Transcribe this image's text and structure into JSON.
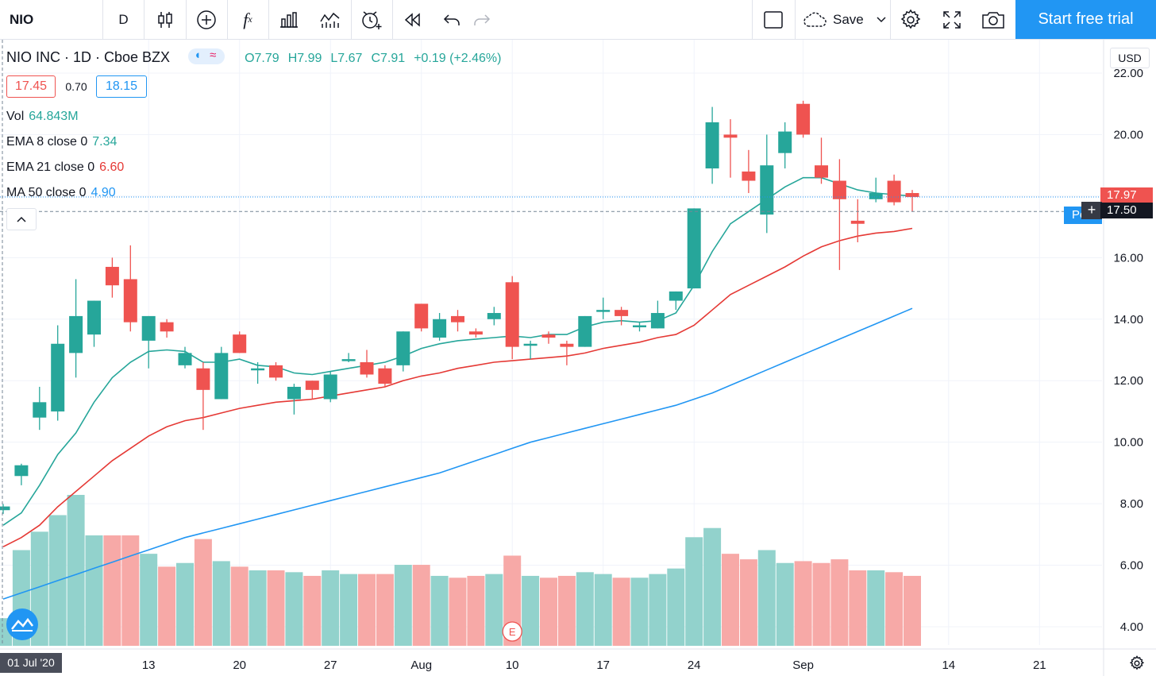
{
  "toolbar": {
    "symbol": "NIO",
    "interval": "D",
    "fx": "f",
    "save_label": "Save",
    "trial_label": "Start free trial"
  },
  "legend": {
    "title": "NIO INC · 1D · Cboe BZX",
    "ohlc": {
      "o": "O7.79",
      "h": "H7.99",
      "l": "L7.67",
      "c": "C7.91",
      "chg": "+0.19 (+2.46%)"
    },
    "bid": "17.45",
    "spread": "0.70",
    "ask": "18.15",
    "vol_label": "Vol",
    "vol_value": "64.843M",
    "ema8_label": "EMA 8 close 0",
    "ema8_value": "7.34",
    "ema21_label": "EMA 21 close 0",
    "ema21_value": "6.60",
    "ma50_label": "MA 50 close 0",
    "ma50_value": "4.90"
  },
  "price_axis": {
    "currency": "USD",
    "last_price": "17.97",
    "crosshair_price": "17.50",
    "po_label": "Po"
  },
  "time_axis": {
    "crosshair_date": "01 Jul '20"
  },
  "earnings_marker": "E",
  "colors": {
    "up": "#26a69a",
    "down": "#ef5350",
    "up_vol": "#92d2cc",
    "down_vol": "#f7a9a7",
    "ema8": "#26a69a",
    "ema21": "#e53935",
    "ma50": "#2196f3",
    "accent": "#2196f3"
  },
  "chart_data": {
    "type": "candlestick",
    "symbol": "NIO",
    "ylim": [
      3.3,
      22.6
    ],
    "yticks": [
      4,
      6,
      8,
      10,
      12,
      14,
      16,
      18,
      20,
      22
    ],
    "xticks": [
      {
        "label": "13",
        "index": 8
      },
      {
        "label": "20",
        "index": 13
      },
      {
        "label": "27",
        "index": 18
      },
      {
        "label": "Aug",
        "index": 23
      },
      {
        "label": "10",
        "index": 28
      },
      {
        "label": "17",
        "index": 33
      },
      {
        "label": "24",
        "index": 38
      },
      {
        "label": "Sep",
        "index": 44
      },
      {
        "label": "14",
        "index": 52
      },
      {
        "label": "21",
        "index": 57
      }
    ],
    "candles": [
      {
        "o": 7.79,
        "h": 7.99,
        "l": 7.67,
        "c": 7.91,
        "v": 1.5
      },
      {
        "o": 8.9,
        "h": 9.3,
        "l": 8.6,
        "c": 9.25,
        "v": 5.2
      },
      {
        "o": 10.8,
        "h": 11.8,
        "l": 10.4,
        "c": 11.3,
        "v": 6.2
      },
      {
        "o": 11.0,
        "h": 13.8,
        "l": 10.7,
        "c": 13.2,
        "v": 7.1
      },
      {
        "o": 12.9,
        "h": 15.3,
        "l": 12.1,
        "c": 14.1,
        "v": 8.2
      },
      {
        "o": 13.5,
        "h": 14.6,
        "l": 13.1,
        "c": 14.6,
        "v": 6.0
      },
      {
        "o": 15.7,
        "h": 16.0,
        "l": 14.7,
        "c": 15.1,
        "v": 6.0
      },
      {
        "o": 15.3,
        "h": 16.4,
        "l": 13.6,
        "c": 13.9,
        "v": 6.0
      },
      {
        "o": 13.3,
        "h": 14.1,
        "l": 12.4,
        "c": 14.1,
        "v": 5.0
      },
      {
        "o": 13.9,
        "h": 14.0,
        "l": 13.4,
        "c": 13.6,
        "v": 4.3
      },
      {
        "o": 12.5,
        "h": 13.1,
        "l": 12.4,
        "c": 12.9,
        "v": 4.5
      },
      {
        "o": 12.4,
        "h": 12.6,
        "l": 10.4,
        "c": 11.7,
        "v": 5.8
      },
      {
        "o": 11.4,
        "h": 13.1,
        "l": 11.4,
        "c": 12.9,
        "v": 4.6
      },
      {
        "o": 13.5,
        "h": 13.6,
        "l": 12.9,
        "c": 12.9,
        "v": 4.3
      },
      {
        "o": 12.4,
        "h": 12.6,
        "l": 11.9,
        "c": 12.4,
        "v": 4.1
      },
      {
        "o": 12.5,
        "h": 12.6,
        "l": 12.0,
        "c": 12.1,
        "v": 4.1
      },
      {
        "o": 11.4,
        "h": 11.9,
        "l": 10.9,
        "c": 11.8,
        "v": 4.0
      },
      {
        "o": 12.0,
        "h": 12.0,
        "l": 11.4,
        "c": 11.7,
        "v": 3.8
      },
      {
        "o": 11.4,
        "h": 12.3,
        "l": 11.3,
        "c": 12.2,
        "v": 4.1
      },
      {
        "o": 12.7,
        "h": 12.9,
        "l": 12.6,
        "c": 12.7,
        "v": 3.9
      },
      {
        "o": 12.6,
        "h": 13.0,
        "l": 12.1,
        "c": 12.2,
        "v": 3.9
      },
      {
        "o": 12.4,
        "h": 12.5,
        "l": 11.8,
        "c": 11.9,
        "v": 3.9
      },
      {
        "o": 12.5,
        "h": 13.6,
        "l": 12.3,
        "c": 13.6,
        "v": 4.4
      },
      {
        "o": 14.5,
        "h": 14.5,
        "l": 13.6,
        "c": 13.7,
        "v": 4.4
      },
      {
        "o": 13.4,
        "h": 14.2,
        "l": 13.3,
        "c": 14.0,
        "v": 3.8
      },
      {
        "o": 14.1,
        "h": 14.3,
        "l": 13.6,
        "c": 13.9,
        "v": 3.7
      },
      {
        "o": 13.6,
        "h": 13.7,
        "l": 13.4,
        "c": 13.5,
        "v": 3.8
      },
      {
        "o": 14.0,
        "h": 14.4,
        "l": 13.8,
        "c": 14.2,
        "v": 3.9
      },
      {
        "o": 15.2,
        "h": 15.4,
        "l": 12.7,
        "c": 13.1,
        "v": 4.9
      },
      {
        "o": 13.2,
        "h": 13.3,
        "l": 12.7,
        "c": 13.2,
        "v": 3.8
      },
      {
        "o": 13.5,
        "h": 13.6,
        "l": 13.2,
        "c": 13.4,
        "v": 3.7
      },
      {
        "o": 13.2,
        "h": 13.3,
        "l": 12.5,
        "c": 13.1,
        "v": 3.8
      },
      {
        "o": 13.1,
        "h": 14.1,
        "l": 13.1,
        "c": 14.1,
        "v": 4.0
      },
      {
        "o": 14.3,
        "h": 14.7,
        "l": 14.0,
        "c": 14.3,
        "v": 3.9
      },
      {
        "o": 14.3,
        "h": 14.4,
        "l": 13.8,
        "c": 14.1,
        "v": 3.7
      },
      {
        "o": 13.8,
        "h": 13.9,
        "l": 13.6,
        "c": 13.8,
        "v": 3.7
      },
      {
        "o": 13.7,
        "h": 14.6,
        "l": 13.7,
        "c": 14.2,
        "v": 3.9
      },
      {
        "o": 14.6,
        "h": 14.9,
        "l": 14.3,
        "c": 14.9,
        "v": 4.2
      },
      {
        "o": 15.0,
        "h": 17.6,
        "l": 15.0,
        "c": 17.6,
        "v": 5.9
      },
      {
        "o": 18.9,
        "h": 20.9,
        "l": 18.4,
        "c": 20.4,
        "v": 6.4
      },
      {
        "o": 20.0,
        "h": 20.5,
        "l": 18.6,
        "c": 19.9,
        "v": 5.0
      },
      {
        "o": 18.8,
        "h": 19.5,
        "l": 18.1,
        "c": 18.5,
        "v": 4.7
      },
      {
        "o": 17.4,
        "h": 20.0,
        "l": 16.8,
        "c": 19.0,
        "v": 5.2
      },
      {
        "o": 19.4,
        "h": 20.4,
        "l": 18.9,
        "c": 20.1,
        "v": 4.5
      },
      {
        "o": 21.0,
        "h": 21.1,
        "l": 19.9,
        "c": 20.0,
        "v": 4.6
      },
      {
        "o": 19.0,
        "h": 19.9,
        "l": 18.4,
        "c": 18.6,
        "v": 4.5
      },
      {
        "o": 18.5,
        "h": 19.2,
        "l": 15.6,
        "c": 17.9,
        "v": 4.7
      },
      {
        "o": 17.2,
        "h": 17.9,
        "l": 16.5,
        "c": 17.1,
        "v": 4.1
      },
      {
        "o": 17.9,
        "h": 18.6,
        "l": 17.8,
        "c": 18.1,
        "v": 4.1
      },
      {
        "o": 18.5,
        "h": 18.7,
        "l": 17.7,
        "c": 17.8,
        "v": 4.0
      },
      {
        "o": 18.1,
        "h": 18.2,
        "l": 17.5,
        "c": 17.97,
        "v": 3.8
      }
    ],
    "ema8": [
      7.3,
      7.7,
      8.6,
      9.6,
      10.3,
      11.3,
      12.1,
      12.6,
      12.95,
      13.0,
      12.95,
      12.6,
      12.6,
      12.7,
      12.5,
      12.45,
      12.25,
      12.2,
      12.3,
      12.4,
      12.5,
      12.6,
      12.8,
      13.05,
      13.2,
      13.3,
      13.35,
      13.4,
      13.45,
      13.4,
      13.5,
      13.5,
      13.75,
      13.9,
      13.95,
      13.9,
      13.95,
      14.2,
      15.1,
      16.2,
      17.1,
      17.5,
      17.9,
      18.3,
      18.6,
      18.6,
      18.4,
      18.2,
      18.1,
      18.05,
      18.0
    ],
    "ema21": [
      6.6,
      6.9,
      7.3,
      7.9,
      8.4,
      8.9,
      9.4,
      9.8,
      10.2,
      10.5,
      10.7,
      10.8,
      10.95,
      11.1,
      11.2,
      11.3,
      11.35,
      11.4,
      11.5,
      11.6,
      11.7,
      11.8,
      12.0,
      12.15,
      12.25,
      12.4,
      12.5,
      12.6,
      12.65,
      12.7,
      12.75,
      12.8,
      12.9,
      13.05,
      13.15,
      13.25,
      13.4,
      13.5,
      13.8,
      14.3,
      14.8,
      15.1,
      15.4,
      15.7,
      16.05,
      16.35,
      16.55,
      16.7,
      16.8,
      16.85,
      16.95
    ],
    "ma50": [
      4.9,
      5.1,
      5.3,
      5.5,
      5.7,
      5.9,
      6.1,
      6.3,
      6.5,
      6.7,
      6.9,
      7.05,
      7.2,
      7.35,
      7.5,
      7.65,
      7.8,
      7.95,
      8.1,
      8.25,
      8.4,
      8.55,
      8.7,
      8.85,
      9.0,
      9.2,
      9.4,
      9.6,
      9.8,
      10.0,
      10.15,
      10.3,
      10.45,
      10.6,
      10.75,
      10.9,
      11.05,
      11.2,
      11.4,
      11.6,
      11.85,
      12.1,
      12.35,
      12.6,
      12.85,
      13.1,
      13.35,
      13.6,
      13.85,
      14.1,
      14.35
    ]
  }
}
